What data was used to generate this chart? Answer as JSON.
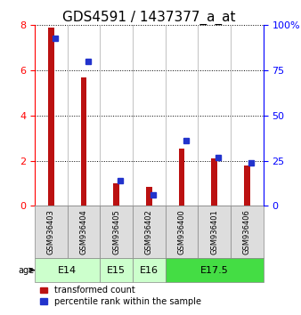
{
  "title": "GDS4591 / 1437377_a_at",
  "samples": [
    "GSM936403",
    "GSM936404",
    "GSM936405",
    "GSM936402",
    "GSM936400",
    "GSM936401",
    "GSM936406"
  ],
  "transformed_count": [
    7.9,
    5.7,
    1.0,
    0.85,
    2.55,
    2.1,
    1.8
  ],
  "percentile_rank": [
    93,
    80,
    14,
    6,
    36,
    27,
    24
  ],
  "age_groups_def": [
    [
      "E14",
      0,
      2,
      "#ccffcc"
    ],
    [
      "E15",
      2,
      3,
      "#ccffcc"
    ],
    [
      "E16",
      3,
      4,
      "#ccffcc"
    ],
    [
      "E17.5",
      4,
      7,
      "#44dd44"
    ]
  ],
  "left_ylim": [
    0,
    8
  ],
  "right_ylim": [
    0,
    100
  ],
  "left_yticks": [
    0,
    2,
    4,
    6,
    8
  ],
  "right_yticks": [
    0,
    25,
    50,
    75,
    100
  ],
  "right_yticklabels": [
    "0",
    "25",
    "50",
    "75",
    "100%"
  ],
  "bar_color_red": "#bb1111",
  "bar_color_blue": "#2233cc",
  "red_bar_width": 0.18,
  "blue_marker_size": 5,
  "bg_color": "#dddddd",
  "plot_bg": "#ffffff",
  "title_fontsize": 11,
  "tick_fontsize": 8,
  "sample_fontsize": 6,
  "age_fontsize": 8,
  "legend_fontsize": 7
}
